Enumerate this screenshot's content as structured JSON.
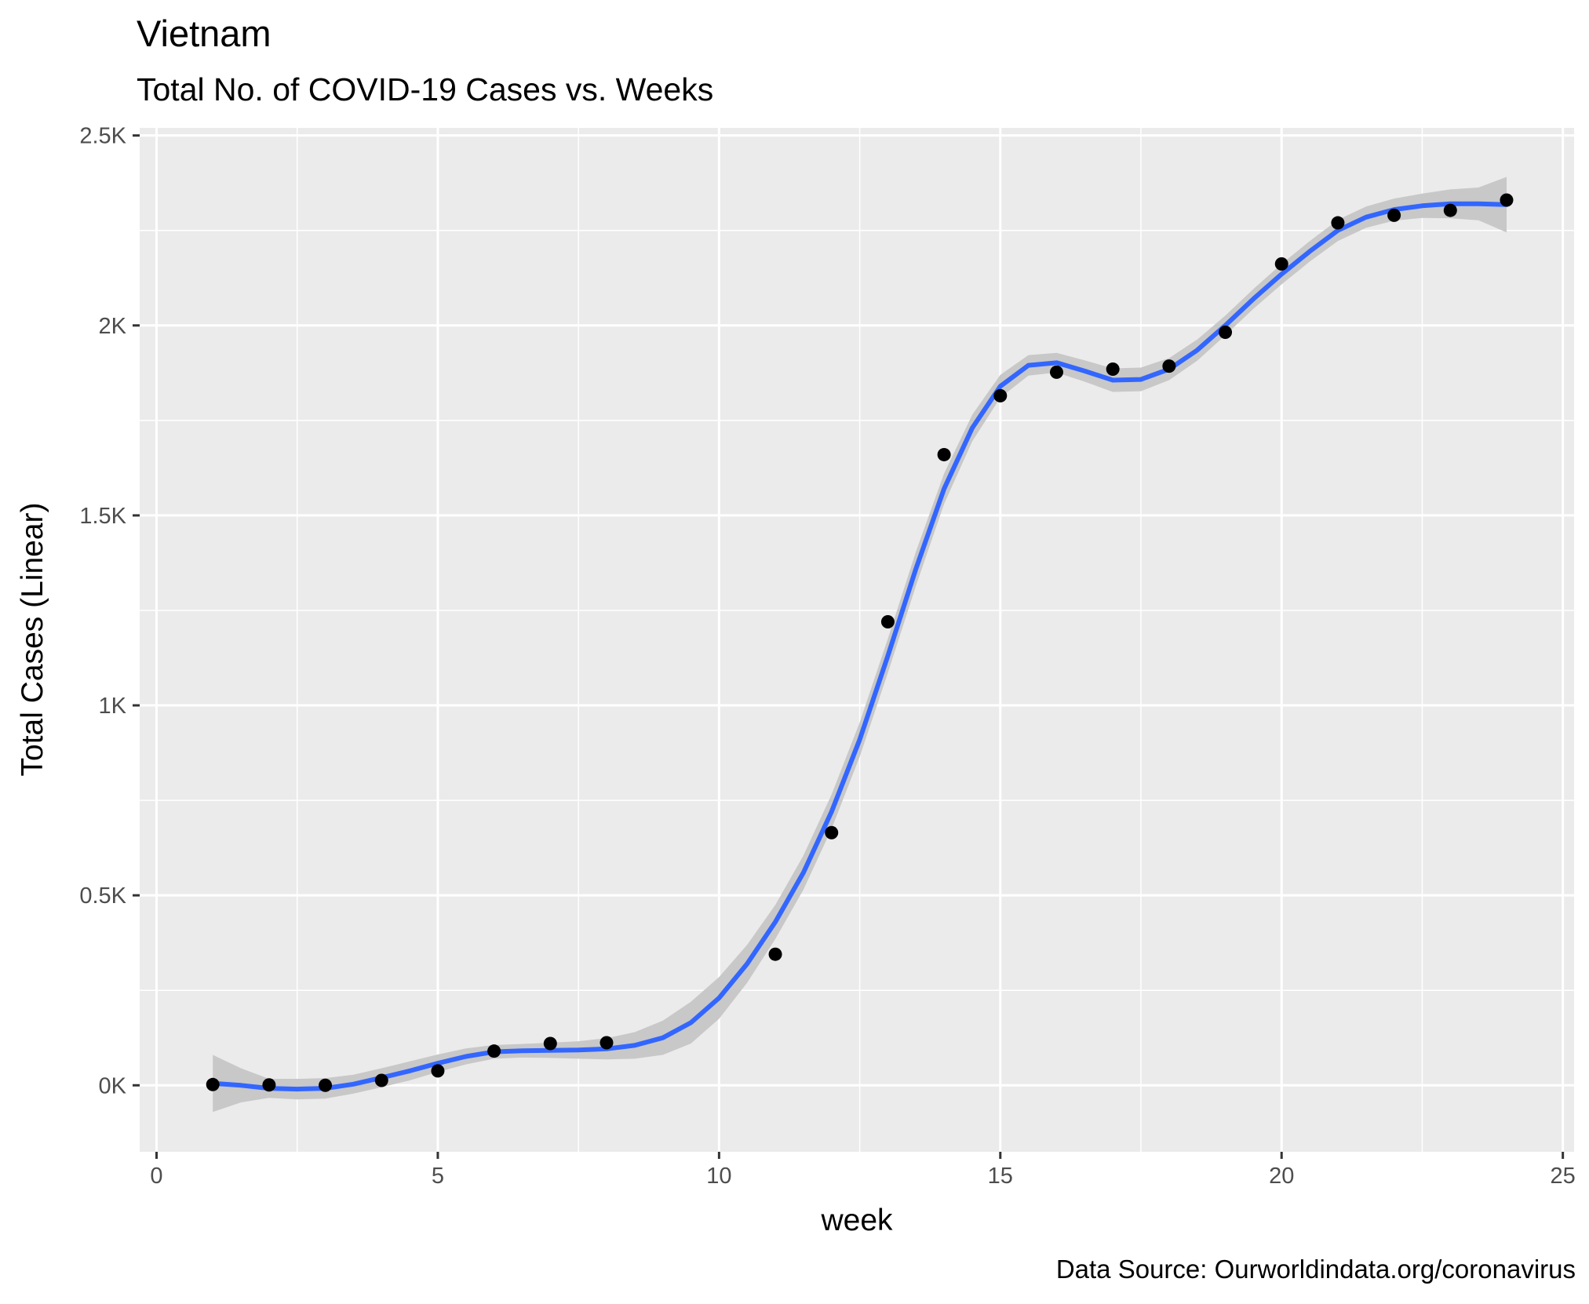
{
  "chart_data": {
    "type": "scatter",
    "title": "Vietnam",
    "subtitle": "Total No. of COVID-19 Cases vs. Weeks",
    "xlabel": "week",
    "ylabel": "Total Cases (Linear)",
    "caption": "Data Source: Ourworldindata.org/coronavirus",
    "xlim": [
      -0.3,
      25.2
    ],
    "ylim": [
      -175,
      2520
    ],
    "x_ticks": [
      0,
      5,
      10,
      15,
      20,
      25
    ],
    "x_tick_labels": [
      "0",
      "5",
      "10",
      "15",
      "20",
      "25"
    ],
    "y_ticks": [
      0,
      500,
      1000,
      1500,
      2000,
      2500
    ],
    "y_tick_labels": [
      "0K",
      "0.5K",
      "1K",
      "1.5K",
      "2K",
      "2.5K"
    ],
    "grid": true,
    "colors": {
      "panel": "#ebebeb",
      "grid": "#ffffff",
      "points": "#000000",
      "smooth_line": "#3366ff",
      "ribbon": "#c8c8c8"
    },
    "points": [
      {
        "x": 1,
        "y": 2
      },
      {
        "x": 2,
        "y": 1
      },
      {
        "x": 3,
        "y": 0
      },
      {
        "x": 4,
        "y": 13
      },
      {
        "x": 5,
        "y": 38
      },
      {
        "x": 6,
        "y": 90
      },
      {
        "x": 7,
        "y": 110
      },
      {
        "x": 8,
        "y": 112
      },
      {
        "x": 11,
        "y": 345
      },
      {
        "x": 12,
        "y": 665
      },
      {
        "x": 13,
        "y": 1220
      },
      {
        "x": 14,
        "y": 1660
      },
      {
        "x": 15,
        "y": 1815
      },
      {
        "x": 16,
        "y": 1877
      },
      {
        "x": 17,
        "y": 1885
      },
      {
        "x": 18,
        "y": 1893
      },
      {
        "x": 19,
        "y": 1982
      },
      {
        "x": 20,
        "y": 2162
      },
      {
        "x": 21,
        "y": 2270
      },
      {
        "x": 22,
        "y": 2290
      },
      {
        "x": 23,
        "y": 2303
      },
      {
        "x": 24,
        "y": 2330
      }
    ],
    "smooth": {
      "x": [
        1,
        1.5,
        2,
        2.5,
        3,
        3.5,
        4,
        4.5,
        5,
        5.5,
        6,
        6.5,
        7,
        7.5,
        8,
        8.5,
        9,
        9.5,
        10,
        10.5,
        11,
        11.5,
        12,
        12.5,
        13,
        13.5,
        14,
        14.5,
        15,
        15.5,
        16,
        16.5,
        17,
        17.5,
        18,
        18.5,
        19,
        19.5,
        20,
        20.5,
        21,
        21.5,
        22,
        22.5,
        23,
        23.5,
        24
      ],
      "y": [
        5,
        0,
        -8,
        -10,
        -8,
        3,
        20,
        38,
        58,
        76,
        88,
        91,
        92,
        93,
        96,
        105,
        125,
        165,
        230,
        320,
        430,
        560,
        720,
        910,
        1130,
        1360,
        1570,
        1730,
        1840,
        1895,
        1902,
        1880,
        1856,
        1858,
        1885,
        1935,
        2000,
        2070,
        2135,
        2195,
        2250,
        2285,
        2305,
        2315,
        2320,
        2320,
        2318
      ],
      "lower": [
        -70,
        -45,
        -33,
        -37,
        -35,
        -22,
        -5,
        13,
        35,
        55,
        70,
        73,
        72,
        70,
        68,
        70,
        80,
        110,
        175,
        270,
        385,
        515,
        675,
        865,
        1085,
        1315,
        1530,
        1695,
        1810,
        1868,
        1876,
        1852,
        1825,
        1827,
        1856,
        1907,
        1974,
        2044,
        2108,
        2168,
        2222,
        2257,
        2276,
        2283,
        2282,
        2277,
        2245
      ],
      "upper": [
        80,
        45,
        17,
        17,
        19,
        28,
        45,
        63,
        81,
        97,
        106,
        109,
        112,
        116,
        124,
        140,
        170,
        220,
        285,
        370,
        475,
        605,
        765,
        955,
        1175,
        1405,
        1610,
        1765,
        1870,
        1922,
        1928,
        1908,
        1887,
        1889,
        1914,
        1963,
        2026,
        2096,
        2162,
        2222,
        2278,
        2313,
        2334,
        2347,
        2358,
        2363,
        2391
      ]
    }
  }
}
